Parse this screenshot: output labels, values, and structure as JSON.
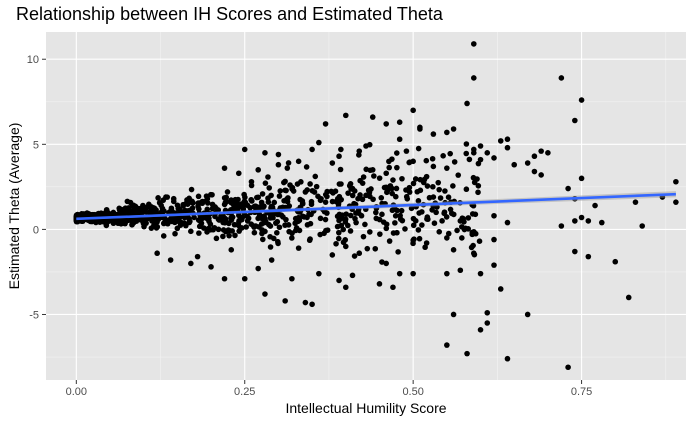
{
  "chart_data": {
    "type": "scatter",
    "title": "Relationship between IH Scores and Estimated Theta",
    "xlabel": "Intellectual Humility Score",
    "ylabel": "Estimated Theta (Average)",
    "xlim": [
      -0.045,
      0.905
    ],
    "ylim": [
      -8.85,
      11.6
    ],
    "x_ticks": [
      0.0,
      0.25,
      0.5,
      0.75
    ],
    "x_tick_labels": [
      "0.00",
      "0.25",
      "0.50",
      "0.75"
    ],
    "y_ticks": [
      -5,
      0,
      5,
      10
    ],
    "y_tick_labels": [
      "-5",
      "0",
      "5",
      "10"
    ],
    "grid": true,
    "background": "#e5e5e5",
    "point_color": "#000000",
    "trend_color": "#3366ff",
    "trend": {
      "method": "linear",
      "x": [
        0.0,
        0.89
      ],
      "y": [
        0.62,
        2.07
      ],
      "se_band": [
        0.06,
        0.18
      ]
    },
    "cloud": {
      "count": 1100,
      "seed": 7,
      "x_max": 0.6
    },
    "outliers": [
      [
        0.59,
        10.9
      ],
      [
        0.59,
        8.9
      ],
      [
        0.58,
        7.4
      ],
      [
        0.72,
        8.9
      ],
      [
        0.75,
        7.6
      ],
      [
        0.74,
        6.4
      ],
      [
        0.51,
        6.0
      ],
      [
        0.51,
        5.9
      ],
      [
        0.53,
        5.6
      ],
      [
        0.56,
        5.9
      ],
      [
        0.55,
        5.7
      ],
      [
        0.53,
        3.7
      ],
      [
        0.55,
        3.6
      ],
      [
        0.6,
        4.9
      ],
      [
        0.61,
        4.5
      ],
      [
        0.63,
        5.2
      ],
      [
        0.64,
        4.8
      ],
      [
        0.64,
        5.3
      ],
      [
        0.62,
        4.2
      ],
      [
        0.59,
        4.7
      ],
      [
        0.59,
        4.5
      ],
      [
        0.6,
        4.1
      ],
      [
        0.65,
        3.8
      ],
      [
        0.68,
        4.3
      ],
      [
        0.68,
        3.4
      ],
      [
        0.67,
        3.9
      ],
      [
        0.69,
        4.6
      ],
      [
        0.7,
        4.5
      ],
      [
        0.69,
        3.2
      ],
      [
        0.73,
        2.4
      ],
      [
        0.75,
        3.0
      ],
      [
        0.74,
        1.8
      ],
      [
        0.77,
        1.4
      ],
      [
        0.75,
        0.7
      ],
      [
        0.74,
        0.5
      ],
      [
        0.76,
        0.5
      ],
      [
        0.72,
        0.2
      ],
      [
        0.78,
        0.4
      ],
      [
        0.74,
        -1.3
      ],
      [
        0.76,
        -1.6
      ],
      [
        0.8,
        -1.9
      ],
      [
        0.82,
        -4.0
      ],
      [
        0.83,
        1.6
      ],
      [
        0.84,
        0.2
      ],
      [
        0.89,
        1.6
      ],
      [
        0.89,
        2.8
      ],
      [
        0.87,
        1.9
      ],
      [
        0.56,
        -5.0
      ],
      [
        0.58,
        -7.3
      ],
      [
        0.55,
        -6.8
      ],
      [
        0.6,
        -5.9
      ],
      [
        0.61,
        -5.5
      ],
      [
        0.61,
        -4.9
      ],
      [
        0.63,
        -3.5
      ],
      [
        0.64,
        -7.6
      ],
      [
        0.67,
        -5.0
      ],
      [
        0.62,
        -2.1
      ],
      [
        0.6,
        -2.6
      ],
      [
        0.57,
        -2.4
      ],
      [
        0.55,
        -2.6
      ],
      [
        0.59,
        -1.4
      ],
      [
        0.56,
        -1.2
      ],
      [
        0.62,
        -0.6
      ],
      [
        0.64,
        0.4
      ],
      [
        0.73,
        -8.1
      ],
      [
        0.62,
        0.8
      ],
      [
        0.57,
        0.5
      ],
      [
        0.55,
        -0.5
      ],
      [
        0.53,
        1.9
      ],
      [
        0.52,
        3.1
      ],
      [
        0.44,
        6.6
      ],
      [
        0.46,
        6.2
      ],
      [
        0.48,
        6.3
      ],
      [
        0.4,
        6.7
      ],
      [
        0.37,
        6.2
      ],
      [
        0.5,
        7.0
      ],
      [
        0.35,
        4.7
      ],
      [
        0.3,
        4.4
      ],
      [
        0.28,
        4.5
      ],
      [
        0.25,
        4.7
      ],
      [
        0.46,
        -2.0
      ],
      [
        0.47,
        -3.4
      ],
      [
        0.48,
        -2.6
      ],
      [
        0.45,
        -3.2
      ],
      [
        0.4,
        -3.4
      ],
      [
        0.39,
        -3.0
      ],
      [
        0.34,
        -4.3
      ],
      [
        0.35,
        -4.4
      ],
      [
        0.31,
        -4.2
      ],
      [
        0.28,
        -3.8
      ],
      [
        0.41,
        -2.7
      ],
      [
        0.5,
        -2.6
      ],
      [
        0.42,
        -1.4
      ],
      [
        0.32,
        -2.9
      ],
      [
        0.36,
        -2.6
      ],
      [
        0.52,
        -0.8
      ],
      [
        0.25,
        -2.9
      ],
      [
        0.22,
        -2.9
      ],
      [
        0.17,
        -2.0
      ],
      [
        0.18,
        -1.6
      ],
      [
        0.41,
        2.4
      ],
      [
        0.43,
        2.0
      ],
      [
        0.44,
        3.5
      ],
      [
        0.46,
        3.3
      ],
      [
        0.47,
        2.9
      ],
      [
        0.5,
        4.0
      ],
      [
        0.49,
        4.6
      ],
      [
        0.48,
        5.3
      ],
      [
        0.43,
        4.9
      ],
      [
        0.42,
        4.6
      ],
      [
        0.38,
        3.9
      ],
      [
        0.39,
        4.3
      ],
      [
        0.36,
        5.1
      ],
      [
        0.33,
        4.0
      ],
      [
        0.3,
        3.8
      ],
      [
        0.27,
        3.5
      ],
      [
        0.22,
        3.6
      ],
      [
        0.26,
        2.8
      ],
      [
        0.31,
        2.3
      ],
      [
        0.34,
        2.2
      ],
      [
        0.37,
        1.6
      ],
      [
        0.4,
        -1.0
      ],
      [
        0.38,
        -1.5
      ],
      [
        0.29,
        -1.8
      ],
      [
        0.27,
        -2.3
      ],
      [
        0.23,
        -1.2
      ],
      [
        0.2,
        -2.2
      ],
      [
        0.14,
        -1.8
      ],
      [
        0.12,
        -1.4
      ],
      [
        0.33,
        -1.1
      ]
    ]
  }
}
